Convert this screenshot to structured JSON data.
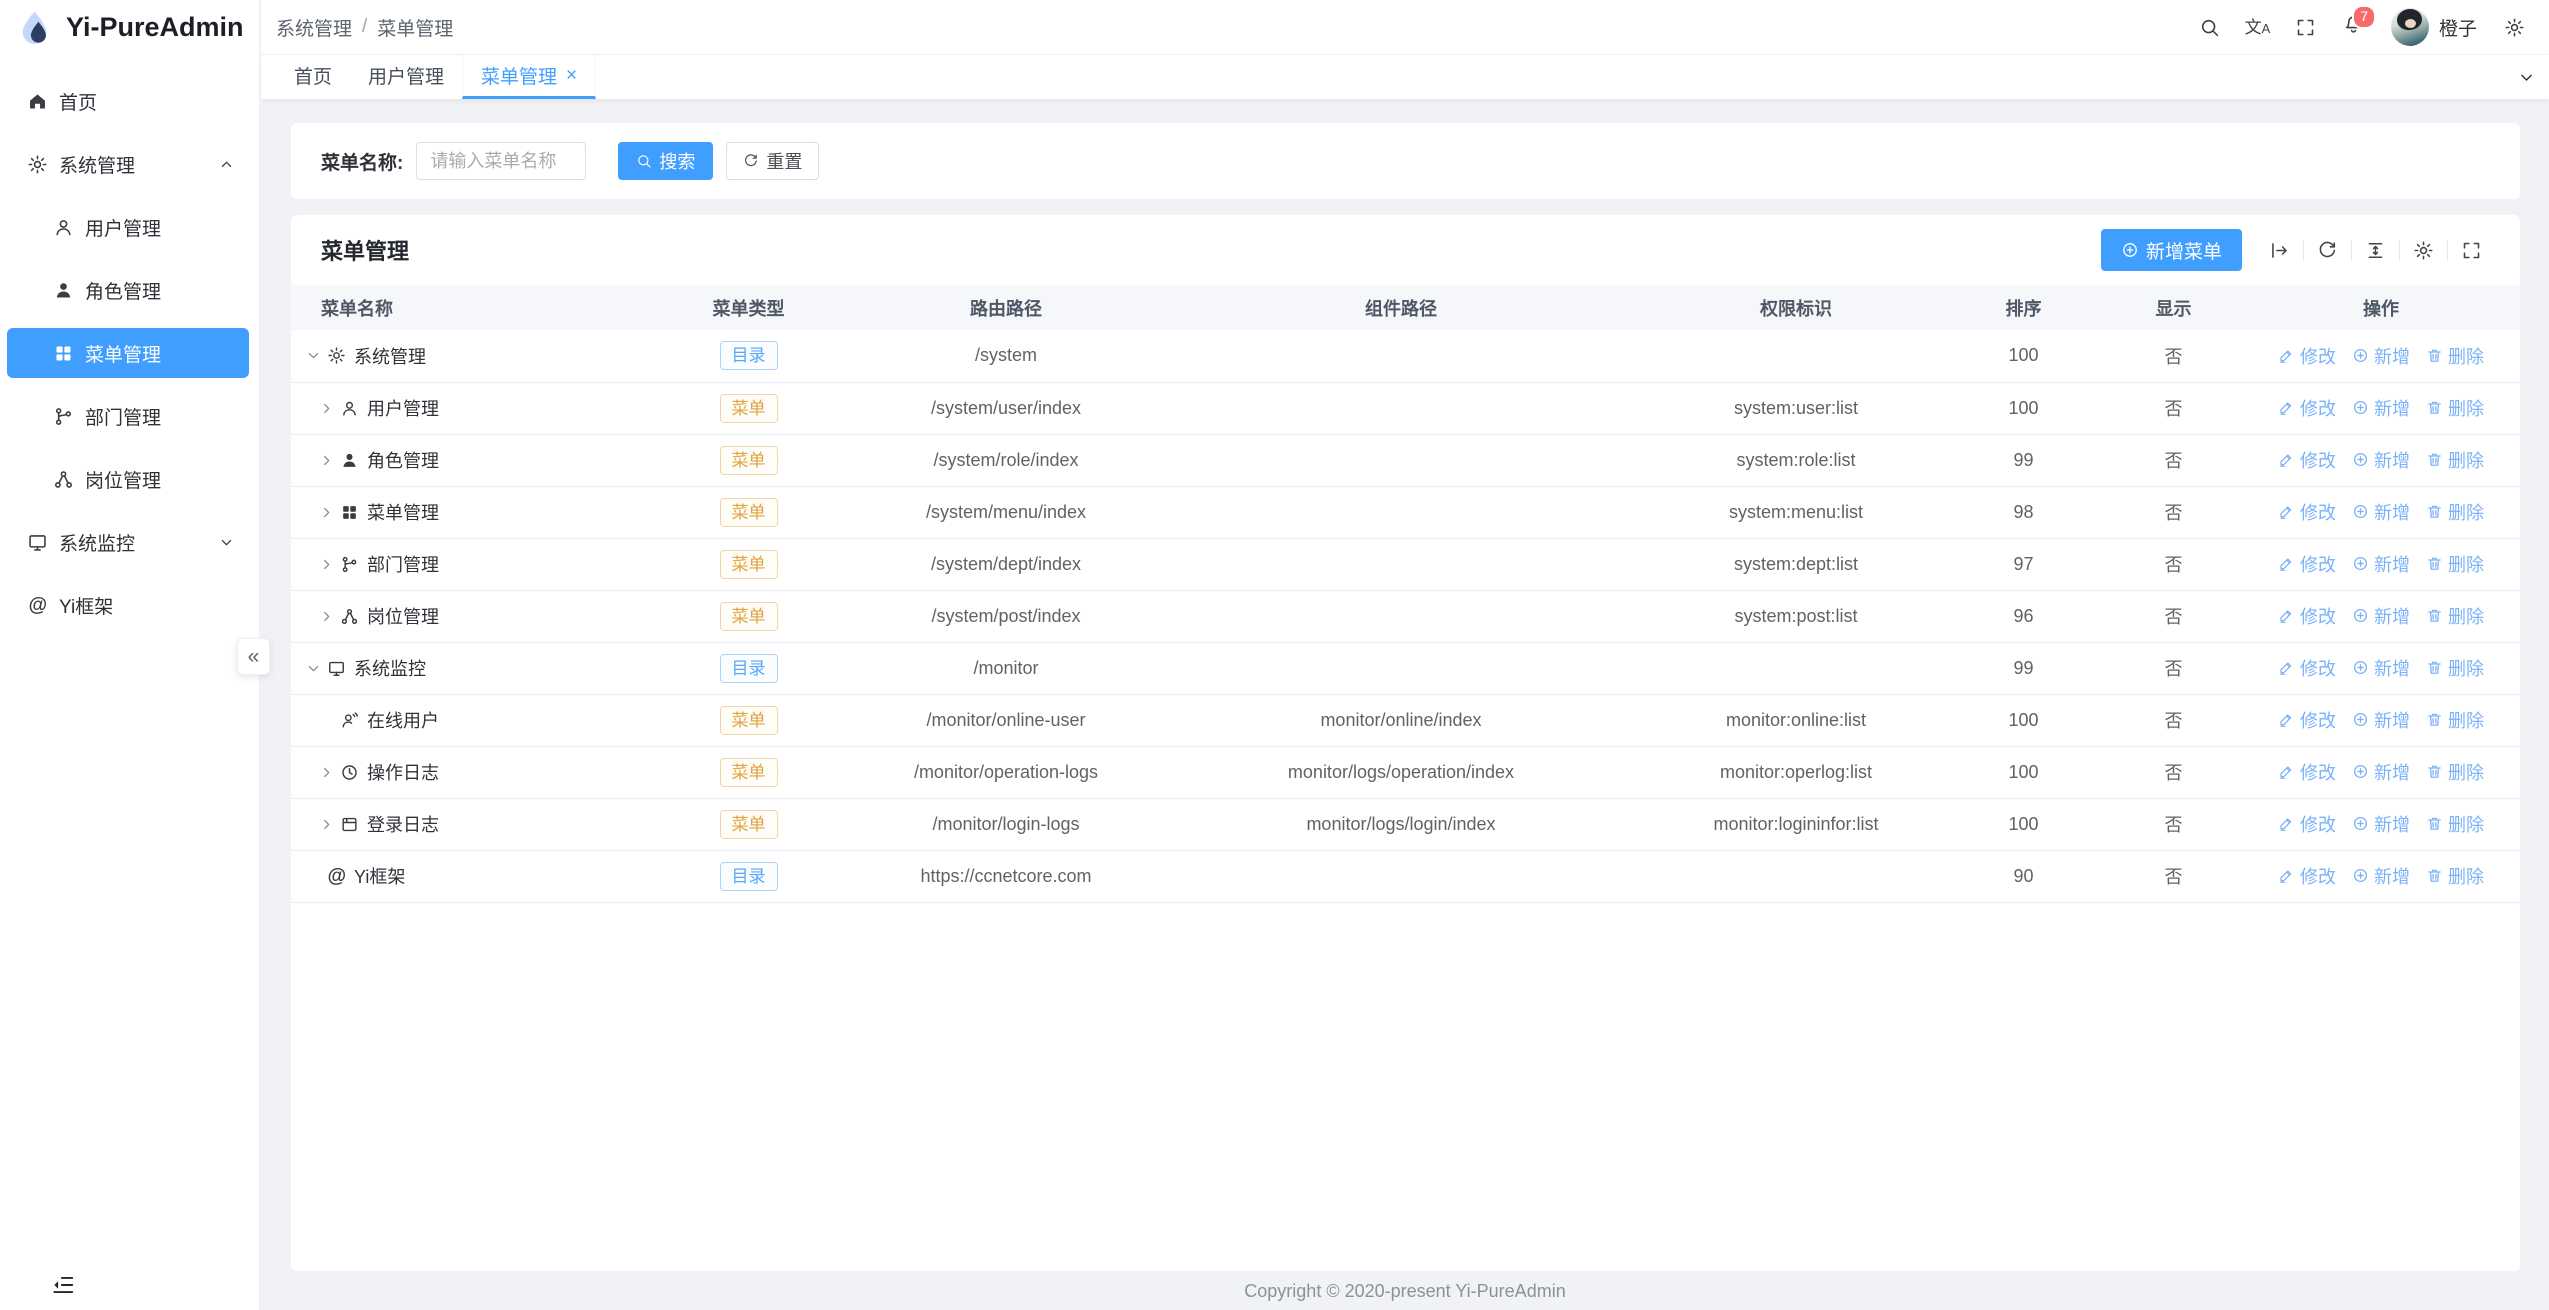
{
  "app": {
    "title": "Yi-PureAdmin",
    "footer": "Copyright © 2020-present Yi-PureAdmin"
  },
  "colors": {
    "primary": "#409eff",
    "link_blue": "#7ab1f9",
    "badge_red": "#f56c6c",
    "tag_dir_orange": "#e6a23c",
    "page_bg": "#f0f2f5"
  },
  "sidebar": {
    "collapse_glyph": "«",
    "items": [
      {
        "label": "首页",
        "icon": "home-icon",
        "level": 0
      },
      {
        "label": "系统管理",
        "icon": "gear-icon",
        "level": 0,
        "chevron": "up"
      },
      {
        "label": "用户管理",
        "icon": "user-icon",
        "level": 1
      },
      {
        "label": "角色管理",
        "icon": "role-icon",
        "level": 1
      },
      {
        "label": "菜单管理",
        "icon": "menu-grid-icon",
        "level": 1,
        "active": true
      },
      {
        "label": "部门管理",
        "icon": "dept-icon",
        "level": 1
      },
      {
        "label": "岗位管理",
        "icon": "post-icon",
        "level": 1
      },
      {
        "label": "系统监控",
        "icon": "monitor-icon",
        "level": 0,
        "chevron": "down"
      },
      {
        "label": "Yi框架",
        "icon": "at-icon",
        "level": 0
      }
    ]
  },
  "header": {
    "breadcrumb": [
      "系统管理",
      "菜单管理"
    ],
    "breadcrumb_separator": "/",
    "notification_count": "7",
    "username": "橙子",
    "icons": [
      "search-icon",
      "translate-icon",
      "fullscreen-icon",
      "bell-icon",
      "settings-icon"
    ]
  },
  "tabs": [
    {
      "label": "首页"
    },
    {
      "label": "用户管理"
    },
    {
      "label": "菜单管理",
      "active": true,
      "closable": true,
      "close_glyph": "×"
    }
  ],
  "search": {
    "label": "菜单名称:",
    "placeholder": "请输入菜单名称",
    "search_label": "搜索",
    "reset_label": "重置"
  },
  "table": {
    "title": "菜单管理",
    "add_button": "新增菜单",
    "toolbar_icons": [
      "expand-rows-icon",
      "refresh-icon",
      "density-icon",
      "column-settings-icon",
      "fullscreen-icon"
    ],
    "columns": [
      "菜单名称",
      "菜单类型",
      "路由路径",
      "组件路径",
      "权限标识",
      "排序",
      "显示",
      "操作"
    ],
    "row_actions": [
      {
        "label": "修改",
        "icon": "edit-icon",
        "name": "row-edit-link"
      },
      {
        "label": "新增",
        "icon": "plus-circle-icon",
        "name": "row-add-link"
      },
      {
        "label": "删除",
        "icon": "trash-icon",
        "name": "row-delete-link"
      }
    ],
    "rows": [
      {
        "name": "系统管理",
        "icon": "gear-icon",
        "level": 0,
        "expand": "expanded",
        "badge": "目录",
        "badge_type": "dir",
        "route": "/system",
        "component": "",
        "permission": "",
        "sort": "100",
        "visible": "否"
      },
      {
        "name": "用户管理",
        "icon": "user-icon",
        "level": 1,
        "expand": "collapsed",
        "badge": "菜单",
        "badge_type": "menu",
        "route": "/system/user/index",
        "component": "",
        "permission": "system:user:list",
        "sort": "100",
        "visible": "否"
      },
      {
        "name": "角色管理",
        "icon": "role-icon",
        "level": 1,
        "expand": "collapsed",
        "badge": "菜单",
        "badge_type": "menu",
        "route": "/system/role/index",
        "component": "",
        "permission": "system:role:list",
        "sort": "99",
        "visible": "否"
      },
      {
        "name": "菜单管理",
        "icon": "menu-grid-icon",
        "level": 1,
        "expand": "collapsed",
        "badge": "菜单",
        "badge_type": "menu",
        "route": "/system/menu/index",
        "component": "",
        "permission": "system:menu:list",
        "sort": "98",
        "visible": "否"
      },
      {
        "name": "部门管理",
        "icon": "dept-icon",
        "level": 1,
        "expand": "collapsed",
        "badge": "菜单",
        "badge_type": "menu",
        "route": "/system/dept/index",
        "component": "",
        "permission": "system:dept:list",
        "sort": "97",
        "visible": "否"
      },
      {
        "name": "岗位管理",
        "icon": "post-icon",
        "level": 1,
        "expand": "collapsed",
        "badge": "菜单",
        "badge_type": "menu",
        "route": "/system/post/index",
        "component": "",
        "permission": "system:post:list",
        "sort": "96",
        "visible": "否"
      },
      {
        "name": "系统监控",
        "icon": "monitor-icon",
        "level": 0,
        "expand": "expanded",
        "badge": "目录",
        "badge_type": "dir",
        "route": "/monitor",
        "component": "",
        "permission": "",
        "sort": "99",
        "visible": "否"
      },
      {
        "name": "在线用户",
        "icon": "online-user-icon",
        "level": 1,
        "expand": "none",
        "badge": "菜单",
        "badge_type": "menu",
        "route": "/monitor/online-user",
        "component": "monitor/online/index",
        "permission": "monitor:online:list",
        "sort": "100",
        "visible": "否"
      },
      {
        "name": "操作日志",
        "icon": "clock-icon",
        "level": 1,
        "expand": "collapsed",
        "badge": "菜单",
        "badge_type": "menu",
        "route": "/monitor/operation-logs",
        "component": "monitor/logs/operation/index",
        "permission": "monitor:operlog:list",
        "sort": "100",
        "visible": "否"
      },
      {
        "name": "登录日志",
        "icon": "journal-icon",
        "level": 1,
        "expand": "collapsed",
        "badge": "菜单",
        "badge_type": "menu",
        "route": "/monitor/login-logs",
        "component": "monitor/logs/login/index",
        "permission": "monitor:logininfor:list",
        "sort": "100",
        "visible": "否"
      },
      {
        "name": "Yi框架",
        "icon": "at-icon",
        "level": 0,
        "expand": "none",
        "badge": "目录",
        "badge_type": "dir",
        "route": "https://ccnetcore.com",
        "component": "",
        "permission": "",
        "sort": "90",
        "visible": "否"
      }
    ]
  }
}
